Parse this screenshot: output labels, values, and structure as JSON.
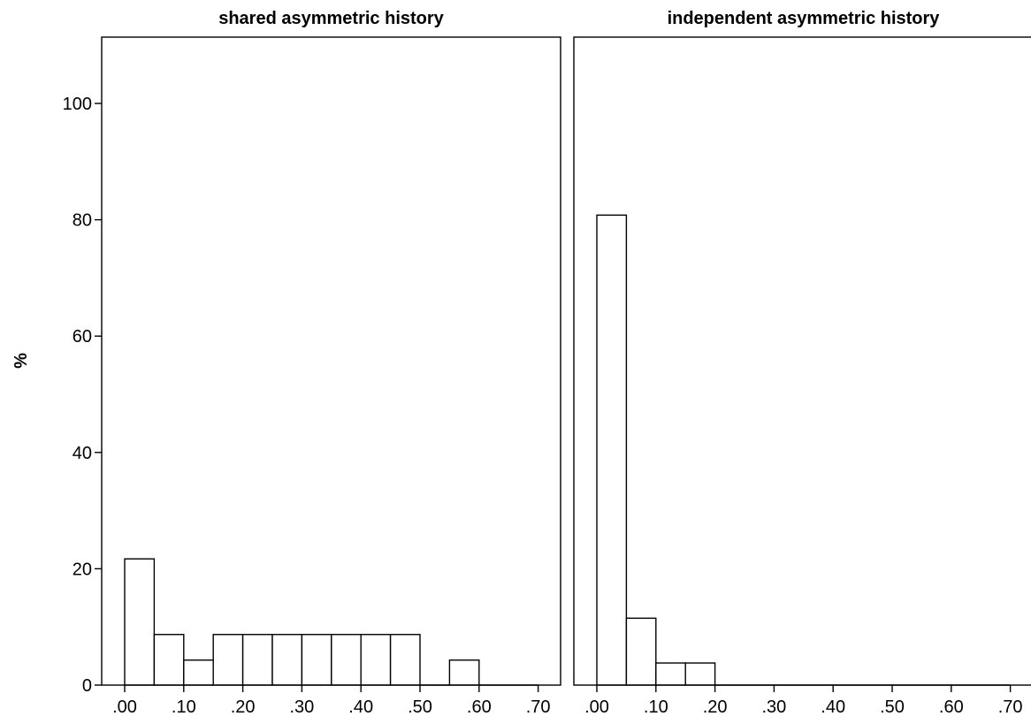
{
  "chart_data": {
    "type": "bar",
    "ylabel": "%",
    "ylim": [
      0,
      110
    ],
    "yticks": [
      0,
      20,
      40,
      60,
      80,
      100
    ],
    "ytick_labels": [
      "0",
      "20",
      "40",
      "60",
      "80",
      "100"
    ],
    "xlim": [
      -0.04,
      0.74
    ],
    "xticks": [
      0.0,
      0.1,
      0.2,
      0.3,
      0.4,
      0.5,
      0.6,
      0.7
    ],
    "xtick_labels": [
      ".00",
      ".10",
      ".20",
      ".30",
      ".40",
      ".50",
      ".60",
      ".70"
    ],
    "bin_width": 0.05,
    "panels": [
      {
        "title": "shared asymmetric history",
        "bins": [
          {
            "start": 0.0,
            "value": 21.7
          },
          {
            "start": 0.05,
            "value": 8.7
          },
          {
            "start": 0.1,
            "value": 4.3
          },
          {
            "start": 0.15,
            "value": 8.7
          },
          {
            "start": 0.2,
            "value": 8.7
          },
          {
            "start": 0.25,
            "value": 8.7
          },
          {
            "start": 0.3,
            "value": 8.7
          },
          {
            "start": 0.35,
            "value": 8.7
          },
          {
            "start": 0.4,
            "value": 8.7
          },
          {
            "start": 0.45,
            "value": 8.7
          },
          {
            "start": 0.5,
            "value": 0
          },
          {
            "start": 0.55,
            "value": 4.3
          },
          {
            "start": 0.6,
            "value": 0
          },
          {
            "start": 0.65,
            "value": 0
          }
        ]
      },
      {
        "title": "independent asymmetric history",
        "bins": [
          {
            "start": 0.0,
            "value": 80.8
          },
          {
            "start": 0.05,
            "value": 11.5
          },
          {
            "start": 0.1,
            "value": 3.8
          },
          {
            "start": 0.15,
            "value": 3.8
          },
          {
            "start": 0.2,
            "value": 0
          },
          {
            "start": 0.25,
            "value": 0
          },
          {
            "start": 0.3,
            "value": 0
          },
          {
            "start": 0.35,
            "value": 0
          },
          {
            "start": 0.4,
            "value": 0
          },
          {
            "start": 0.45,
            "value": 0
          },
          {
            "start": 0.5,
            "value": 0
          },
          {
            "start": 0.55,
            "value": 0
          },
          {
            "start": 0.6,
            "value": 0
          },
          {
            "start": 0.65,
            "value": 0
          }
        ]
      }
    ]
  }
}
